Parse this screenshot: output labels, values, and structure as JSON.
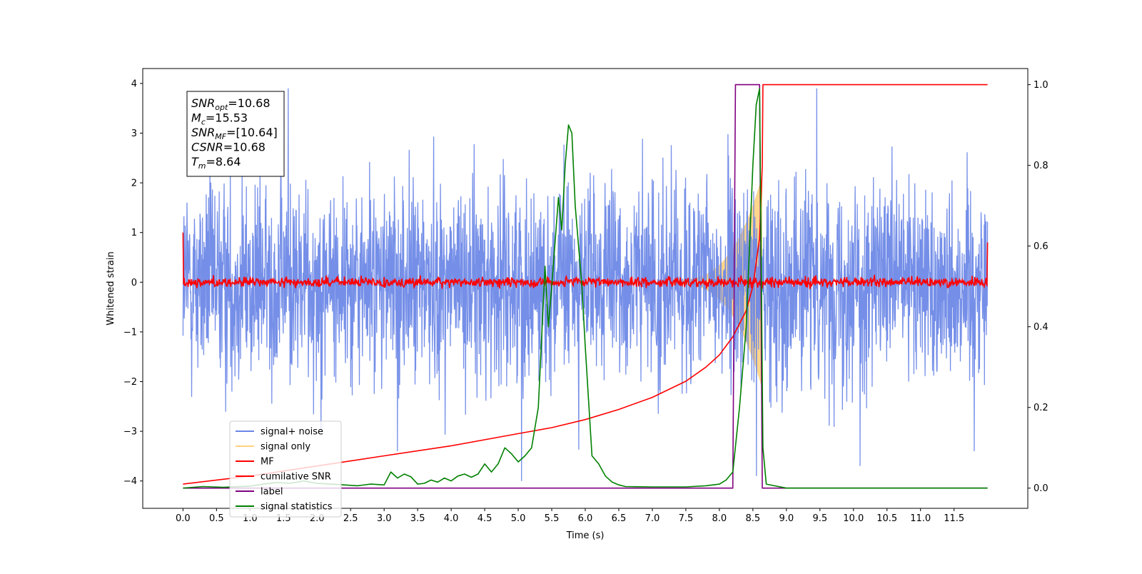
{
  "chart_data": {
    "type": "line",
    "xlabel": "Time (s)",
    "ylabel": "Whitened strain",
    "xlim": [
      -0.6,
      12.6
    ],
    "ylim": [
      -4.55,
      4.3
    ],
    "y2lim": [
      -0.05,
      1.04
    ],
    "x_ticks": [
      0.0,
      0.5,
      1.0,
      1.5,
      2.0,
      2.5,
      3.0,
      3.5,
      4.0,
      4.5,
      5.0,
      5.5,
      6.0,
      6.5,
      7.0,
      7.5,
      8.0,
      8.5,
      9.0,
      9.5,
      10.0,
      10.5,
      11.0,
      11.5
    ],
    "x_tick_labels": [
      "0.0",
      "0.5",
      "1.0",
      "1.5",
      "2.0",
      "2.5",
      "3.0",
      "3.5",
      "4.0",
      "4.5",
      "5.0",
      "5.5",
      "6.0",
      "6.5",
      "7.0",
      "7.5",
      "8.0",
      "8.5",
      "9.0",
      "9.5",
      "10.0",
      "10.5",
      "11.0",
      "11.5"
    ],
    "y_ticks": [
      -4,
      -3,
      -2,
      -1,
      0,
      1,
      2,
      3,
      4
    ],
    "y_tick_labels": [
      "−4",
      "−3",
      "−2",
      "−1",
      "0",
      "1",
      "2",
      "3",
      "4"
    ],
    "y2_ticks": [
      0.0,
      0.2,
      0.4,
      0.6,
      0.8,
      1.0
    ],
    "y2_tick_labels": [
      "0.0",
      "0.2",
      "0.4",
      "0.6",
      "0.8",
      "1.0"
    ],
    "legend": {
      "location": "lower-left",
      "entries": [
        {
          "name": "signal+ noise",
          "color": "#6a87e6"
        },
        {
          "name": "signal only",
          "color": "#ffd27f"
        },
        {
          "name": "MF",
          "color": "#ff0000"
        },
        {
          "name": "cumilative SNR",
          "color": "#ff0000"
        },
        {
          "name": "label",
          "color": "#800080"
        },
        {
          "name": "signal statistics",
          "color": "#008000"
        }
      ]
    },
    "annotation": {
      "location": "upper-left",
      "lines": [
        {
          "base": "SNR",
          "sub": "opt",
          "value": "=10.68"
        },
        {
          "base": "M",
          "sub": "c",
          "value": "=15.53"
        },
        {
          "base": "SNR",
          "sub": "MF",
          "value": "=[10.64]"
        },
        {
          "base": "CSNR",
          "sub": "",
          "value": "=10.68"
        },
        {
          "base": "T",
          "sub": "m",
          "value": "=8.64"
        }
      ]
    },
    "series": [
      {
        "name": "signal+ noise",
        "axis": "left",
        "color": "#6a87e6",
        "x_range": [
          0.0,
          12.0
        ],
        "envelope": {
          "typical_amplitude": 1.0,
          "min": -4.0,
          "max": 3.9
        },
        "spikes": [
          {
            "x": 5.05,
            "y": -4.0
          },
          {
            "x": 8.55,
            "y": -3.9
          },
          {
            "x": 1.57,
            "y": 3.9
          },
          {
            "x": 9.45,
            "y": 3.9
          },
          {
            "x": 10.1,
            "y": -3.7
          },
          {
            "x": 11.8,
            "y": -3.4
          },
          {
            "x": 3.2,
            "y": -3.4
          }
        ]
      },
      {
        "name": "signal only",
        "axis": "left",
        "color": "#ffd27f",
        "chirp": {
          "start": 7.3,
          "end": 8.64,
          "peak_amplitude": 2.1
        }
      },
      {
        "name": "MF",
        "axis": "left",
        "color": "#ff0000",
        "x_range": [
          0.0,
          12.0
        ],
        "noise_amplitude": 0.1,
        "edge_values": {
          "start": 1.0,
          "end": 0.8
        }
      },
      {
        "name": "cumilative SNR",
        "axis": "right",
        "color": "#ff0000",
        "x": [
          0.0,
          1.0,
          2.0,
          3.0,
          4.0,
          5.0,
          5.5,
          6.0,
          6.5,
          7.0,
          7.5,
          7.8,
          8.0,
          8.2,
          8.4,
          8.5,
          8.6,
          8.64,
          8.65,
          12.0
        ],
        "y": [
          0.01,
          0.03,
          0.055,
          0.08,
          0.105,
          0.135,
          0.15,
          0.17,
          0.195,
          0.225,
          0.265,
          0.3,
          0.33,
          0.375,
          0.44,
          0.5,
          0.62,
          0.8,
          1.0,
          1.0
        ]
      },
      {
        "name": "label",
        "axis": "right",
        "color": "#800080",
        "x": [
          0.0,
          8.2,
          8.24,
          8.6,
          8.64,
          12.0
        ],
        "y": [
          0.0,
          0.0,
          1.0,
          1.0,
          0.0,
          0.0
        ]
      },
      {
        "name": "signal statistics",
        "axis": "right",
        "color": "#008000",
        "x": [
          0.0,
          0.3,
          0.6,
          1.0,
          1.2,
          1.4,
          1.6,
          1.8,
          2.0,
          2.2,
          2.4,
          2.6,
          2.8,
          3.0,
          3.1,
          3.2,
          3.3,
          3.4,
          3.5,
          3.6,
          3.7,
          3.8,
          3.9,
          4.0,
          4.1,
          4.2,
          4.3,
          4.4,
          4.5,
          4.6,
          4.7,
          4.8,
          4.9,
          5.0,
          5.1,
          5.2,
          5.3,
          5.4,
          5.45,
          5.5,
          5.6,
          5.65,
          5.7,
          5.75,
          5.8,
          5.85,
          5.9,
          5.95,
          6.0,
          6.1,
          6.2,
          6.3,
          6.4,
          6.5,
          6.6,
          7.0,
          7.5,
          7.8,
          8.0,
          8.1,
          8.2,
          8.3,
          8.4,
          8.5,
          8.55,
          8.6,
          8.65,
          8.7,
          9.0,
          12.0
        ],
        "y": [
          0.0,
          0.004,
          0.002,
          0.005,
          0.01,
          0.014,
          0.012,
          0.018,
          0.012,
          0.01,
          0.008,
          0.006,
          0.01,
          0.008,
          0.04,
          0.025,
          0.035,
          0.028,
          0.01,
          0.012,
          0.02,
          0.015,
          0.025,
          0.018,
          0.03,
          0.035,
          0.027,
          0.035,
          0.06,
          0.04,
          0.06,
          0.1,
          0.085,
          0.065,
          0.08,
          0.1,
          0.2,
          0.55,
          0.4,
          0.5,
          0.72,
          0.64,
          0.8,
          0.9,
          0.88,
          0.7,
          0.6,
          0.5,
          0.35,
          0.08,
          0.06,
          0.03,
          0.015,
          0.008,
          0.004,
          0.003,
          0.003,
          0.006,
          0.01,
          0.02,
          0.04,
          0.2,
          0.4,
          0.8,
          0.95,
          0.99,
          0.1,
          0.01,
          0.0,
          0.0
        ]
      }
    ]
  }
}
